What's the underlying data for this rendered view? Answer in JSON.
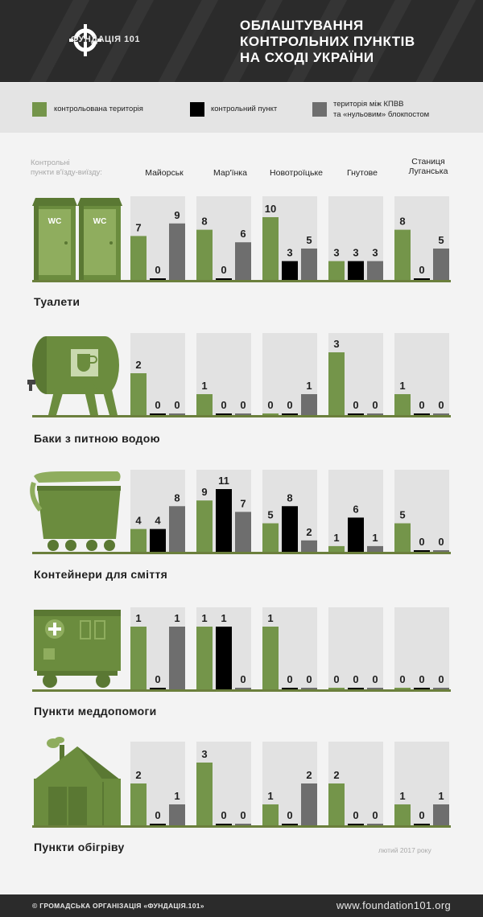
{
  "header": {
    "logo_text": "ФУНДАЦІЯ 101",
    "title_lines": [
      "ОБЛАШТУВАННЯ",
      "КОНТРОЛЬНИХ ПУНКТІВ",
      "НА СХОДІ УКРАЇНИ"
    ]
  },
  "colors": {
    "controlled": "#74954a",
    "checkpoint": "#000000",
    "between": "#6e6e6e",
    "panel_bg": "#e2e2e2",
    "accent_line": "#6b7f3c"
  },
  "legend": {
    "controlled": "контрольована територія",
    "checkpoint": "контрольний пункт",
    "between_line1": "територія між КПВВ",
    "between_line2": "та «нульовим» блокпостом"
  },
  "checkpoints_label_line1": "Контрольні",
  "checkpoints_label_line2": "пункти в'їзду-виїзду:",
  "date_note": "лютий 2017 року",
  "footer": {
    "left": "© ГРОМАДСЬКА ОРГАНІЗАЦІЯ «ФУНДАЦІЯ.101»",
    "right": "www.foundation101.org"
  },
  "icons": [
    "wc-toilets-icon",
    "water-tank-icon",
    "trash-container-icon",
    "medical-truck-icon",
    "heating-tent-icon"
  ],
  "chart_data": {
    "type": "bar",
    "categories": [
      "Майорськ",
      "Мар'їнка",
      "Новотроїцьке",
      "Гнутове",
      "Станиця Луганська"
    ],
    "category_lines": [
      [
        "Майорськ"
      ],
      [
        "Мар'їнка"
      ],
      [
        "Новотроїцьке"
      ],
      [
        "Гнутове"
      ],
      [
        "Станиця",
        "Луганська"
      ]
    ],
    "series_names": [
      "контрольована територія",
      "контрольний пункт",
      "територія між КПВВ та «нульовим» блокпостом"
    ],
    "panels": [
      {
        "title": "Туалети",
        "ylim": [
          0,
          10
        ],
        "values": [
          [
            7,
            0,
            9
          ],
          [
            8,
            0,
            6
          ],
          [
            10,
            3,
            5
          ],
          [
            3,
            3,
            3
          ],
          [
            8,
            0,
            5
          ]
        ]
      },
      {
        "title": "Баки з питною водою",
        "ylim": [
          0,
          3
        ],
        "values": [
          [
            2,
            0,
            0
          ],
          [
            1,
            0,
            0
          ],
          [
            0,
            0,
            1
          ],
          [
            3,
            0,
            0
          ],
          [
            1,
            0,
            0
          ]
        ]
      },
      {
        "title": "Контейнери для сміття",
        "ylim": [
          0,
          11
        ],
        "values": [
          [
            4,
            4,
            8
          ],
          [
            9,
            11,
            7
          ],
          [
            5,
            8,
            2
          ],
          [
            1,
            6,
            1
          ],
          [
            5,
            0,
            0
          ]
        ]
      },
      {
        "title": "Пункти меддопомоги",
        "ylim": [
          0,
          1
        ],
        "values": [
          [
            1,
            0,
            1
          ],
          [
            1,
            1,
            0
          ],
          [
            1,
            0,
            0
          ],
          [
            0,
            0,
            0
          ],
          [
            0,
            0,
            0
          ]
        ]
      },
      {
        "title": "Пункти обігріву",
        "ylim": [
          0,
          3
        ],
        "values": [
          [
            2,
            0,
            1
          ],
          [
            3,
            0,
            0
          ],
          [
            1,
            0,
            2
          ],
          [
            2,
            0,
            0
          ],
          [
            1,
            0,
            1
          ]
        ]
      }
    ]
  }
}
